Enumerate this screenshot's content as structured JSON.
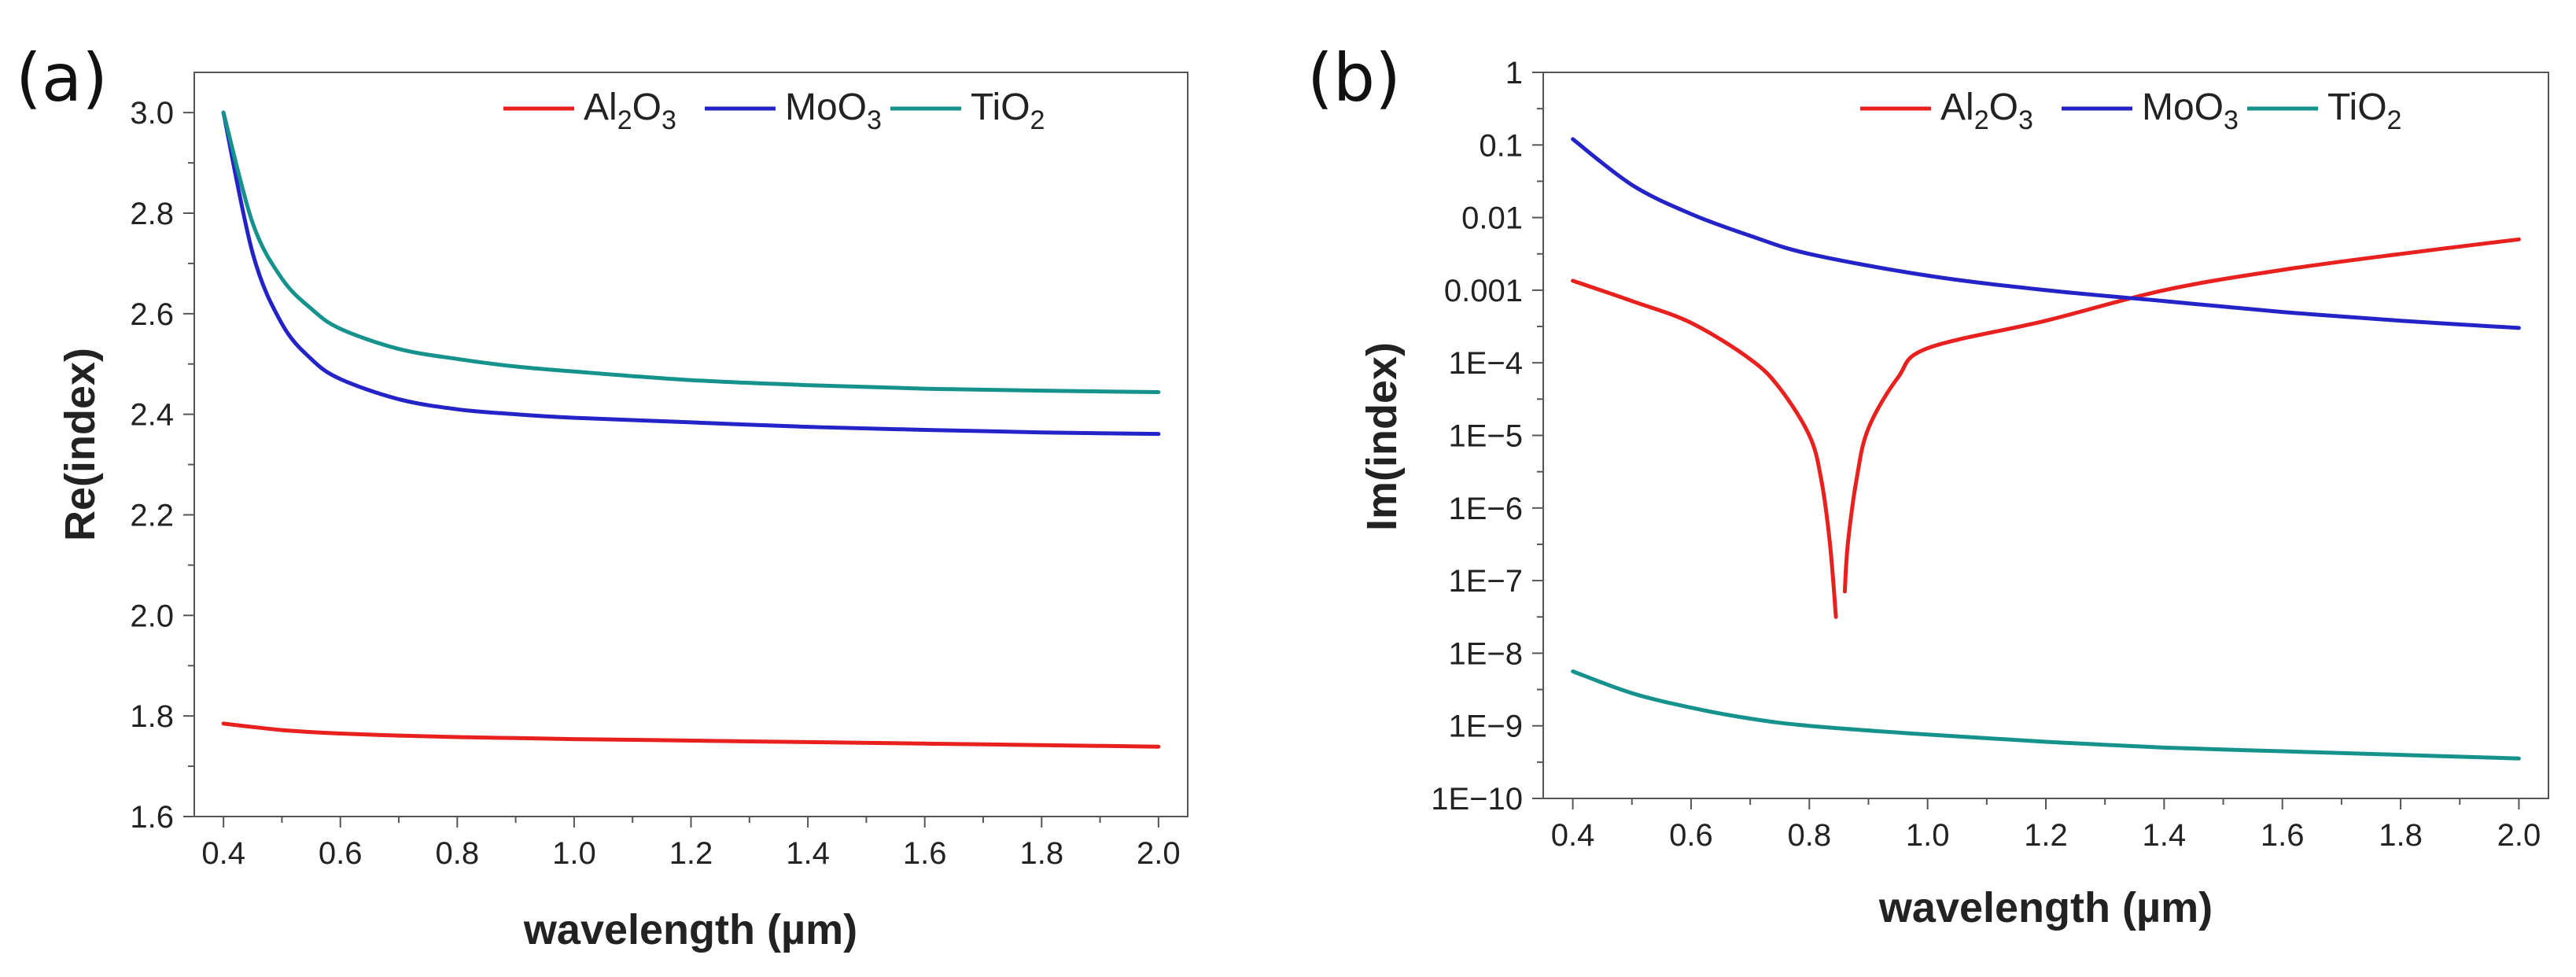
{
  "chart_data": [
    {
      "panel": "(a)",
      "type": "line",
      "xlabel": "wavelength (µm)",
      "ylabel": "Re(index)",
      "xlim": [
        0.35,
        2.05
      ],
      "ylim": [
        1.6,
        3.08
      ],
      "xticks": [
        "0.4",
        "0.6",
        "0.8",
        "1.0",
        "1.2",
        "1.4",
        "1.6",
        "1.8",
        "2.0"
      ],
      "yticks": [
        "1.6",
        "1.8",
        "2.0",
        "2.2",
        "2.4",
        "2.6",
        "2.8",
        "3.0"
      ],
      "x": [
        0.4,
        0.45,
        0.5,
        0.55,
        0.6,
        0.7,
        0.8,
        0.9,
        1.0,
        1.2,
        1.4,
        1.6,
        1.8,
        2.0
      ],
      "series": [
        {
          "name": "Al2O3",
          "base": "Al",
          "sub1": "2",
          "mid": "O",
          "sub2": "3",
          "color": "#e8201e",
          "values": [
            1.785,
            1.778,
            1.772,
            1.768,
            1.765,
            1.761,
            1.758,
            1.756,
            1.754,
            1.751,
            1.748,
            1.745,
            1.742,
            1.739
          ]
        },
        {
          "name": "MoO3",
          "base": "MoO",
          "sub1": "3",
          "mid": "",
          "sub2": "",
          "color": "#2323c8",
          "values": [
            3.0,
            2.72,
            2.58,
            2.51,
            2.47,
            2.43,
            2.41,
            2.4,
            2.393,
            2.384,
            2.375,
            2.369,
            2.364,
            2.361
          ]
        },
        {
          "name": "TiO2",
          "base": "TiO",
          "sub1": "2",
          "mid": "",
          "sub2": "",
          "color": "#16928c",
          "values": [
            3.0,
            2.78,
            2.67,
            2.61,
            2.57,
            2.53,
            2.51,
            2.495,
            2.485,
            2.468,
            2.458,
            2.451,
            2.447,
            2.444
          ]
        }
      ]
    },
    {
      "panel": "(b)",
      "type": "line",
      "yscale": "log",
      "xlabel": "wavelength (µm)",
      "ylabel": "Im(index)",
      "xlim": [
        0.35,
        2.05
      ],
      "ylim_log10": [
        -10,
        0
      ],
      "xticks": [
        "0.4",
        "0.6",
        "0.8",
        "1.0",
        "1.2",
        "1.4",
        "1.6",
        "1.8",
        "2.0"
      ],
      "yticks": [
        "1",
        "0.1",
        "0.01",
        "0.001",
        "1E−4",
        "1E−5",
        "1E−6",
        "1E−7",
        "1E−8",
        "1E−9",
        "1E−10"
      ],
      "series": [
        {
          "name": "Al2O3",
          "base": "Al",
          "sub1": "2",
          "mid": "O",
          "sub2": "3",
          "color": "#e8201e",
          "segments": [
            {
              "x": [
                0.4,
                0.5,
                0.6,
                0.7,
                0.75,
                0.8,
                0.82,
                0.835,
                0.845
              ],
              "log10": [
                -2.87,
                -3.15,
                -3.45,
                -3.95,
                -4.35,
                -5.0,
                -5.6,
                -6.5,
                -7.5
              ]
            },
            {
              "x": [
                0.86,
                0.865,
                0.88,
                0.9,
                0.95,
                1.0,
                1.2,
                1.4,
                1.6,
                1.8,
                2.0
              ],
              "log10": [
                -7.15,
                -6.5,
                -5.6,
                -4.9,
                -4.2,
                -3.8,
                -3.42,
                -3.0,
                -2.72,
                -2.5,
                -2.3
              ]
            }
          ]
        },
        {
          "name": "MoO3",
          "base": "MoO",
          "sub1": "3",
          "mid": "",
          "sub2": "",
          "color": "#2323c8",
          "segments": [
            {
              "x": [
                0.4,
                0.5,
                0.6,
                0.7,
                0.8,
                1.0,
                1.2,
                1.4,
                1.6,
                1.8,
                2.0
              ],
              "log10": [
                -0.92,
                -1.55,
                -1.95,
                -2.25,
                -2.5,
                -2.8,
                -3.0,
                -3.15,
                -3.3,
                -3.42,
                -3.52
              ]
            }
          ]
        },
        {
          "name": "TiO2",
          "base": "TiO",
          "sub1": "2",
          "mid": "",
          "sub2": "",
          "color": "#16928c",
          "segments": [
            {
              "x": [
                0.4,
                0.5,
                0.6,
                0.7,
                0.8,
                1.0,
                1.2,
                1.4,
                1.6,
                1.8,
                2.0
              ],
              "log10": [
                -8.25,
                -8.55,
                -8.75,
                -8.9,
                -9.0,
                -9.12,
                -9.22,
                -9.3,
                -9.35,
                -9.4,
                -9.45
              ]
            }
          ]
        }
      ]
    }
  ]
}
